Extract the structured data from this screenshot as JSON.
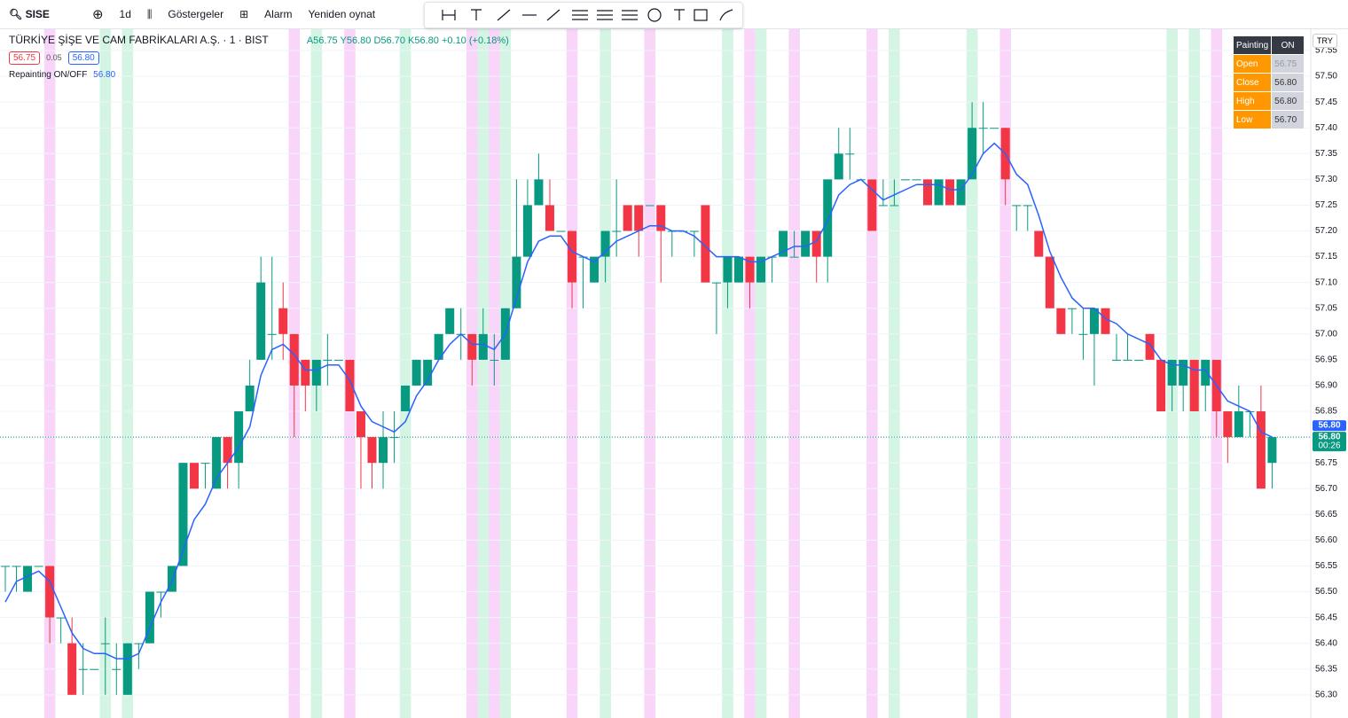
{
  "toolbar": {
    "symbol": "SISE",
    "interval": "1d",
    "indicators": "Göstergeler",
    "alert": "Alarm",
    "replay": "Yeniden oynat"
  },
  "legend": {
    "title": "TÜRKİYE ŞİŞE VE CAM FABRİKALARI A.Ş. · 1 · BIST",
    "open": "A56.75",
    "high": "Y56.80",
    "low": "D56.70",
    "close": "K56.80",
    "change": "+0.10 (+0.18%)",
    "bid": "56.75",
    "spread": "0.05",
    "ask": "56.80",
    "indicator": "Repainting ON/OFF",
    "indicator_value": "56.80"
  },
  "currency": "TRY",
  "table": {
    "header": [
      "Painting",
      "ON"
    ],
    "rows": [
      [
        "Open",
        "56.75"
      ],
      [
        "Close",
        "56.80"
      ],
      [
        "High",
        "56.80"
      ],
      [
        "Low",
        "56.70"
      ]
    ]
  },
  "price_labels": {
    "last": "56.80",
    "close": "56.80",
    "countdown": "00:26"
  },
  "chart_data": {
    "type": "candlestick",
    "up_color": "#089981",
    "down_color": "#f23645",
    "ylim": [
      56.255,
      57.593
    ],
    "yticks": [
      {
        "value": 56.3,
        "label": "56.30"
      },
      {
        "value": 56.35,
        "label": "56.35"
      },
      {
        "value": 56.4,
        "label": "56.40"
      },
      {
        "value": 56.45,
        "label": "56.45"
      },
      {
        "value": 56.5,
        "label": "56.50"
      },
      {
        "value": 56.55,
        "label": "56.55"
      },
      {
        "value": 56.6,
        "label": "56.60"
      },
      {
        "value": 56.65,
        "label": "56.65"
      },
      {
        "value": 56.7,
        "label": "56.70"
      },
      {
        "value": 56.75,
        "label": "56.75"
      },
      {
        "value": 56.8,
        "label": "56.80"
      },
      {
        "value": 56.85,
        "label": "56.85"
      },
      {
        "value": 56.9,
        "label": "56.90"
      },
      {
        "value": 56.95,
        "label": "56.95"
      },
      {
        "value": 57.0,
        "label": "57.00"
      },
      {
        "value": 57.05,
        "label": "57.05"
      },
      {
        "value": 57.1,
        "label": "57.10"
      },
      {
        "value": 57.15,
        "label": "57.15"
      },
      {
        "value": 57.2,
        "label": "57.20"
      },
      {
        "value": 57.25,
        "label": "57.25"
      },
      {
        "value": 57.3,
        "label": "57.30"
      },
      {
        "value": 57.35,
        "label": "57.35"
      },
      {
        "value": 57.4,
        "label": "57.40"
      },
      {
        "value": 57.45,
        "label": "57.45"
      },
      {
        "value": 57.5,
        "label": "57.50"
      },
      {
        "value": 57.55,
        "label": "57.55"
      }
    ],
    "grid": true,
    "last_price": 56.8,
    "open": [
      56.55,
      56.55,
      56.5,
      56.55,
      56.55,
      56.45,
      56.4,
      56.35,
      56.35,
      56.4,
      56.35,
      56.3,
      56.4,
      56.4,
      56.5,
      56.5,
      56.55,
      56.75,
      56.75,
      56.7,
      56.8,
      56.75,
      56.85,
      56.95,
      57.0,
      57.05,
      57.0,
      56.95,
      56.9,
      56.95,
      56.95,
      56.95,
      56.85,
      56.8,
      56.75,
      56.8,
      56.85,
      56.9,
      56.9,
      56.95,
      57.0,
      57.0,
      57.0,
      56.95,
      56.95,
      56.95,
      57.05,
      57.15,
      57.25,
      57.25,
      57.2,
      57.2,
      57.15,
      57.1,
      57.15,
      57.2,
      57.25,
      57.25,
      57.25,
      57.25,
      57.2,
      57.2,
      57.2,
      57.25,
      57.1,
      57.1,
      57.1,
      57.15,
      57.1,
      57.15,
      57.15,
      57.15,
      57.15,
      57.2,
      57.15,
      57.3,
      57.35,
      57.3,
      57.3,
      57.25,
      57.25,
      57.3,
      57.3,
      57.3,
      57.25,
      57.3,
      57.25,
      57.3,
      57.4,
      57.4,
      57.4,
      57.25,
      57.25,
      57.2,
      57.15,
      57.05,
      57.05,
      57.0,
      57.0,
      57.05,
      56.95,
      56.95,
      56.95,
      57.0,
      56.95,
      56.9,
      56.9,
      56.95,
      56.9,
      56.95,
      56.85,
      56.8,
      56.85,
      56.85,
      56.75
    ],
    "high": [
      56.55,
      56.55,
      56.55,
      56.55,
      56.55,
      56.45,
      56.45,
      56.4,
      56.35,
      56.45,
      56.4,
      56.4,
      56.4,
      56.5,
      56.5,
      56.55,
      56.75,
      56.75,
      56.75,
      56.8,
      56.8,
      56.85,
      56.95,
      57.15,
      57.15,
      57.1,
      57.0,
      56.95,
      56.95,
      57.0,
      56.95,
      56.95,
      56.85,
      56.8,
      56.85,
      56.85,
      56.9,
      56.95,
      56.95,
      57.0,
      57.05,
      57.05,
      57.0,
      57.05,
      57.0,
      57.05,
      57.3,
      57.3,
      57.35,
      57.3,
      57.2,
      57.2,
      57.15,
      57.15,
      57.2,
      57.3,
      57.25,
      57.25,
      57.25,
      57.25,
      57.2,
      57.2,
      57.2,
      57.25,
      57.1,
      57.15,
      57.15,
      57.15,
      57.15,
      57.15,
      57.2,
      57.2,
      57.2,
      57.2,
      57.3,
      57.4,
      57.4,
      57.3,
      57.3,
      57.3,
      57.3,
      57.3,
      57.3,
      57.3,
      57.3,
      57.3,
      57.3,
      57.45,
      57.45,
      57.4,
      57.4,
      57.25,
      57.25,
      57.2,
      57.15,
      57.05,
      57.05,
      57.05,
      57.05,
      57.05,
      57.0,
      57.0,
      56.95,
      57.0,
      56.95,
      56.95,
      56.95,
      56.95,
      56.95,
      56.95,
      56.85,
      56.9,
      56.85,
      56.9,
      56.8
    ],
    "low": [
      56.5,
      56.5,
      56.5,
      56.55,
      56.4,
      56.4,
      56.3,
      56.3,
      56.35,
      56.3,
      56.3,
      56.3,
      56.35,
      56.4,
      56.45,
      56.5,
      56.55,
      56.7,
      56.7,
      56.7,
      56.7,
      56.7,
      56.85,
      56.95,
      56.95,
      56.95,
      56.8,
      56.85,
      56.85,
      56.9,
      56.95,
      56.85,
      56.7,
      56.7,
      56.7,
      56.75,
      56.85,
      56.9,
      56.9,
      56.95,
      57.0,
      56.95,
      56.9,
      56.95,
      56.9,
      56.95,
      57.05,
      57.15,
      57.25,
      57.2,
      57.2,
      57.05,
      57.05,
      57.1,
      57.1,
      57.15,
      57.2,
      57.15,
      57.25,
      57.1,
      57.15,
      57.2,
      57.15,
      57.1,
      57.0,
      57.05,
      57.1,
      57.05,
      57.1,
      57.1,
      57.15,
      57.15,
      57.15,
      57.1,
      57.1,
      57.3,
      57.3,
      57.3,
      57.2,
      57.25,
      57.25,
      57.3,
      57.3,
      57.25,
      57.25,
      57.25,
      57.25,
      57.3,
      57.35,
      57.4,
      57.25,
      57.2,
      57.2,
      57.15,
      57.05,
      57.0,
      57.0,
      56.95,
      56.9,
      57.0,
      56.95,
      56.95,
      56.95,
      56.95,
      56.85,
      56.85,
      56.85,
      56.85,
      56.85,
      56.8,
      56.75,
      56.8,
      56.8,
      56.7,
      56.7
    ],
    "close": [
      56.55,
      56.55,
      56.55,
      56.55,
      56.45,
      56.45,
      56.3,
      56.35,
      56.35,
      56.4,
      56.35,
      56.4,
      56.4,
      56.5,
      56.5,
      56.55,
      56.75,
      56.7,
      56.75,
      56.8,
      56.75,
      56.85,
      56.9,
      57.1,
      57.0,
      57.0,
      56.9,
      56.9,
      56.95,
      56.95,
      56.95,
      56.85,
      56.8,
      56.75,
      56.8,
      56.8,
      56.9,
      56.95,
      56.95,
      57.0,
      57.05,
      57.0,
      56.95,
      57.0,
      56.95,
      57.05,
      57.15,
      57.25,
      57.3,
      57.2,
      57.2,
      57.1,
      57.15,
      57.15,
      57.2,
      57.2,
      57.2,
      57.2,
      57.25,
      57.2,
      57.2,
      57.2,
      57.2,
      57.1,
      57.1,
      57.15,
      57.15,
      57.1,
      57.15,
      57.15,
      57.2,
      57.15,
      57.2,
      57.15,
      57.3,
      57.35,
      57.35,
      57.3,
      57.2,
      57.25,
      57.25,
      57.3,
      57.3,
      57.25,
      57.3,
      57.25,
      57.3,
      57.4,
      57.4,
      57.4,
      57.3,
      57.25,
      57.25,
      57.15,
      57.05,
      57.0,
      57.05,
      57.0,
      57.05,
      57.0,
      56.95,
      56.95,
      56.95,
      56.95,
      56.85,
      56.95,
      56.95,
      56.85,
      56.95,
      56.85,
      56.8,
      56.85,
      56.85,
      56.7,
      56.8
    ],
    "ma": {
      "color": "#2962ff",
      "values": [
        56.48,
        56.52,
        56.53,
        56.54,
        56.52,
        56.47,
        56.42,
        56.39,
        56.38,
        56.38,
        56.37,
        56.37,
        56.38,
        56.43,
        56.48,
        56.52,
        56.58,
        56.64,
        56.67,
        56.72,
        56.75,
        56.78,
        56.82,
        56.92,
        56.97,
        56.98,
        56.96,
        56.93,
        56.93,
        56.94,
        56.94,
        56.91,
        56.86,
        56.83,
        56.82,
        56.81,
        56.83,
        56.88,
        56.91,
        56.95,
        56.98,
        57.0,
        56.98,
        56.98,
        56.97,
        57.0,
        57.07,
        57.14,
        57.18,
        57.19,
        57.19,
        57.16,
        57.15,
        57.14,
        57.16,
        57.18,
        57.19,
        57.2,
        57.21,
        57.21,
        57.2,
        57.2,
        57.19,
        57.17,
        57.15,
        57.15,
        57.15,
        57.14,
        57.14,
        57.15,
        57.16,
        57.17,
        57.17,
        57.18,
        57.22,
        57.27,
        57.29,
        57.3,
        57.28,
        57.26,
        57.27,
        57.28,
        57.29,
        57.29,
        57.29,
        57.28,
        57.28,
        57.31,
        57.35,
        57.37,
        57.35,
        57.31,
        57.29,
        57.23,
        57.16,
        57.11,
        57.07,
        57.05,
        57.05,
        57.03,
        57.02,
        57.0,
        56.99,
        56.98,
        56.95,
        56.94,
        56.94,
        56.93,
        56.93,
        56.9,
        56.87,
        56.86,
        56.85,
        56.81,
        56.8
      ]
    },
    "highlights": [
      {
        "color": "#f9d6f9",
        "indices": [
          4,
          26,
          31,
          42,
          44,
          51,
          58,
          67,
          71,
          78,
          90,
          109
        ]
      },
      {
        "color": "#d4f4e4",
        "indices": [
          9,
          11,
          28,
          36,
          43,
          45,
          54,
          65,
          68,
          80,
          87,
          105,
          107
        ]
      }
    ]
  }
}
